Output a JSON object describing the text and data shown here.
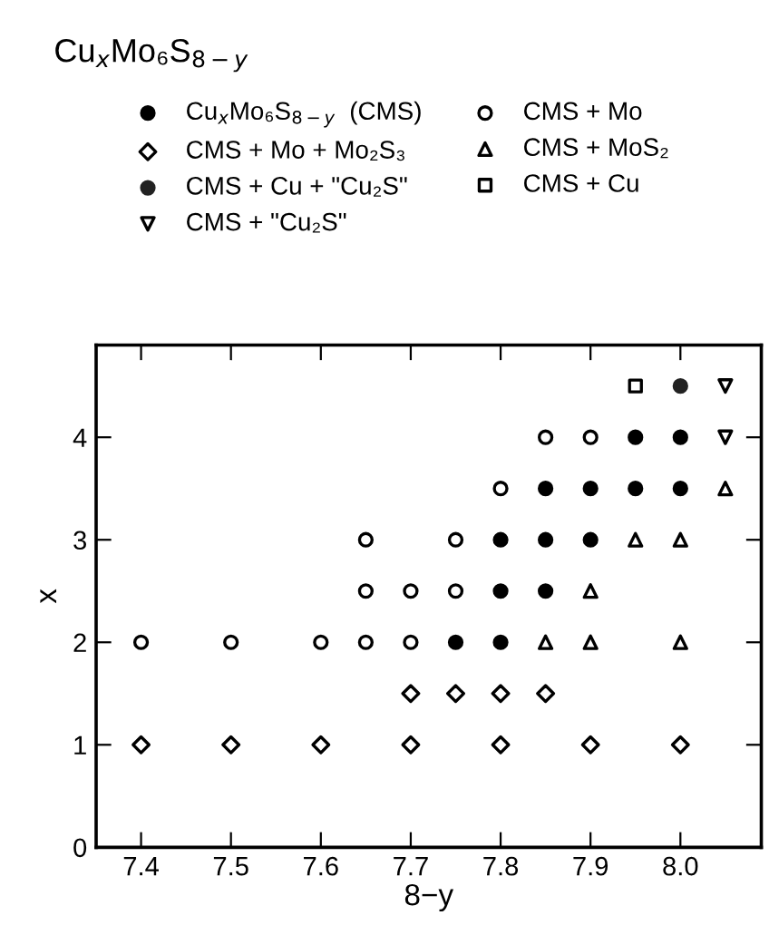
{
  "chart_data": {
    "type": "scatter",
    "title": "Cu$_{x}$Mo₆S$_{8−y}$",
    "xlabel": "8−y",
    "ylabel": "x",
    "xlim": [
      7.35,
      8.09
    ],
    "ylim": [
      0,
      4.9
    ],
    "xticks": [
      7.4,
      7.5,
      7.6,
      7.7,
      7.8,
      7.9,
      {
        "value": 8.0,
        "label": "8.0"
      }
    ],
    "yticks": [
      0,
      1,
      2,
      3,
      4
    ],
    "grid": false,
    "legend": "top",
    "series": [
      {
        "name": "Cu$_{x}$Mo₆S$_{8−y}$  (CMS)",
        "color": "#000000",
        "marker": "circle",
        "x": [
          7.95,
          8.0,
          7.85,
          7.9,
          7.95,
          8.0,
          7.8,
          7.85,
          7.9,
          7.8,
          7.85,
          7.75,
          7.8
        ],
        "values": [
          4,
          4,
          3.5,
          3.5,
          3.5,
          3.5,
          3,
          3,
          3,
          2.5,
          2.5,
          2,
          2
        ]
      },
      {
        "name": "CMS + Mo",
        "color": "#000000",
        "marker": "circle_open",
        "x": [
          7.85,
          7.9,
          7.8,
          7.65,
          7.75,
          7.65,
          7.7,
          7.75,
          7.4,
          7.5,
          7.6,
          7.65,
          7.7
        ],
        "values": [
          4,
          4,
          3.5,
          3,
          3,
          2.5,
          2.5,
          2.5,
          2,
          2,
          2,
          2,
          2
        ]
      },
      {
        "name": "CMS + Mo + Mo₂S₃",
        "color": "#000000",
        "marker": "diamond",
        "x": [
          7.7,
          7.75,
          7.8,
          7.85,
          7.4,
          7.5,
          7.6,
          7.7,
          7.8,
          7.9,
          8.0
        ],
        "values": [
          1.5,
          1.5,
          1.5,
          1.5,
          1,
          1,
          1,
          1,
          1,
          1,
          1
        ]
      },
      {
        "name": "CMS + MoS₂",
        "color": "#000000",
        "marker": "triangle",
        "x": [
          8.05,
          7.95,
          8.0,
          7.9,
          7.85,
          7.9,
          8.0
        ],
        "values": [
          3.5,
          3,
          3,
          2.5,
          2,
          2,
          2
        ]
      },
      {
        "name": "CMS + Cu + \"Cu₂S\"",
        "color": "#222222",
        "marker": "circle",
        "x": [
          8.0
        ],
        "values": [
          4.5
        ]
      },
      {
        "name": "CMS + Cu",
        "color": "#000000",
        "marker": "square",
        "x": [
          7.95
        ],
        "values": [
          4.5
        ]
      },
      {
        "name": "CMS + \"Cu₂S\"",
        "color": "#000000",
        "marker": "triangle_down",
        "x": [
          8.05,
          8.05
        ],
        "values": [
          4.5,
          4
        ]
      }
    ]
  }
}
